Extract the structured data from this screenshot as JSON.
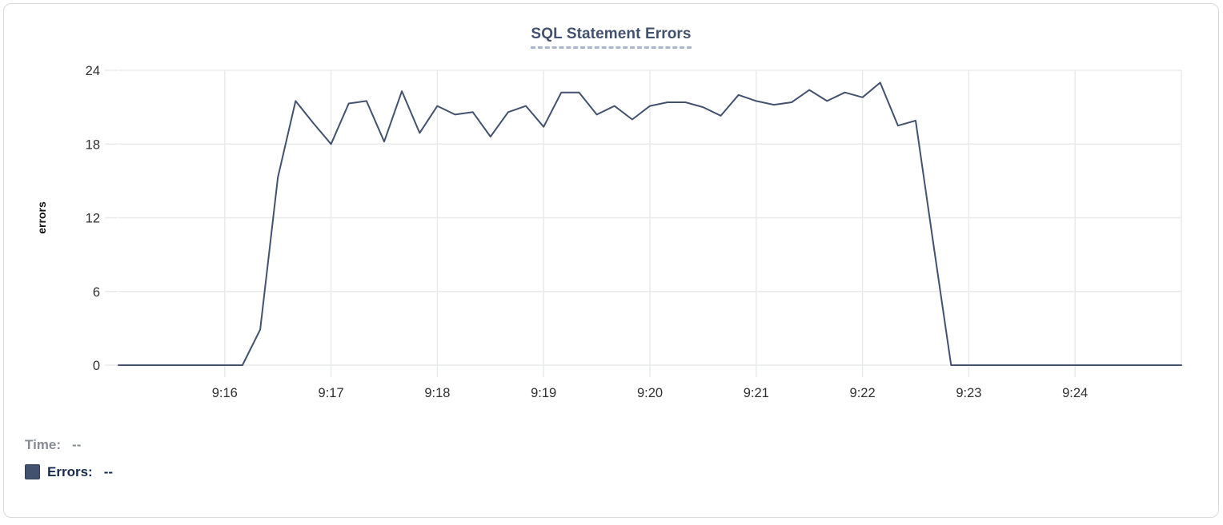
{
  "chart_data": {
    "type": "line",
    "title": "SQL Statement Errors",
    "ylabel": "errors",
    "xlabel": "",
    "ylim": [
      0,
      24
    ],
    "y_ticks": [
      0,
      6,
      12,
      18,
      24
    ],
    "x_tick_labels": [
      "9:16",
      "9:17",
      "9:18",
      "9:19",
      "9:20",
      "9:21",
      "9:22",
      "9:23",
      "9:24"
    ],
    "x_range": [
      "9:15:00",
      "9:25:00"
    ],
    "sample_interval_seconds": 10,
    "grid": true,
    "legend_position": "bottom-left",
    "series": [
      {
        "name": "Errors",
        "color": "#42526e",
        "values": [
          0,
          0,
          0,
          0,
          0,
          0,
          0,
          0,
          2.9,
          15.3,
          21.5,
          19.7,
          18,
          21.3,
          21.5,
          18.2,
          22.3,
          18.9,
          21.1,
          20.4,
          20.6,
          18.6,
          20.6,
          21.1,
          19.4,
          22.2,
          22.2,
          20.4,
          21.1,
          20,
          21.1,
          21.4,
          21.4,
          21,
          20.3,
          22,
          21.5,
          21.2,
          21.4,
          22.4,
          21.5,
          22.2,
          21.8,
          23,
          19.5,
          19.9,
          9.9,
          0,
          0,
          0,
          0,
          0,
          0,
          0,
          0,
          0,
          0,
          0,
          0,
          0,
          0
        ]
      }
    ]
  },
  "legend": {
    "time_label": "Time:",
    "time_value": "--",
    "errors_label": "Errors:",
    "errors_value": "--",
    "swatch_color": "#42526e"
  },
  "colors": {
    "title": "#42526e",
    "title_underline": "#a9b6cc",
    "grid": "#e9eaec",
    "axis_text": "#2f2f2f",
    "axis_title_text": "#111111",
    "time_text": "#868c96",
    "errors_text": "#172b4d",
    "card_border": "#d9dadc"
  }
}
